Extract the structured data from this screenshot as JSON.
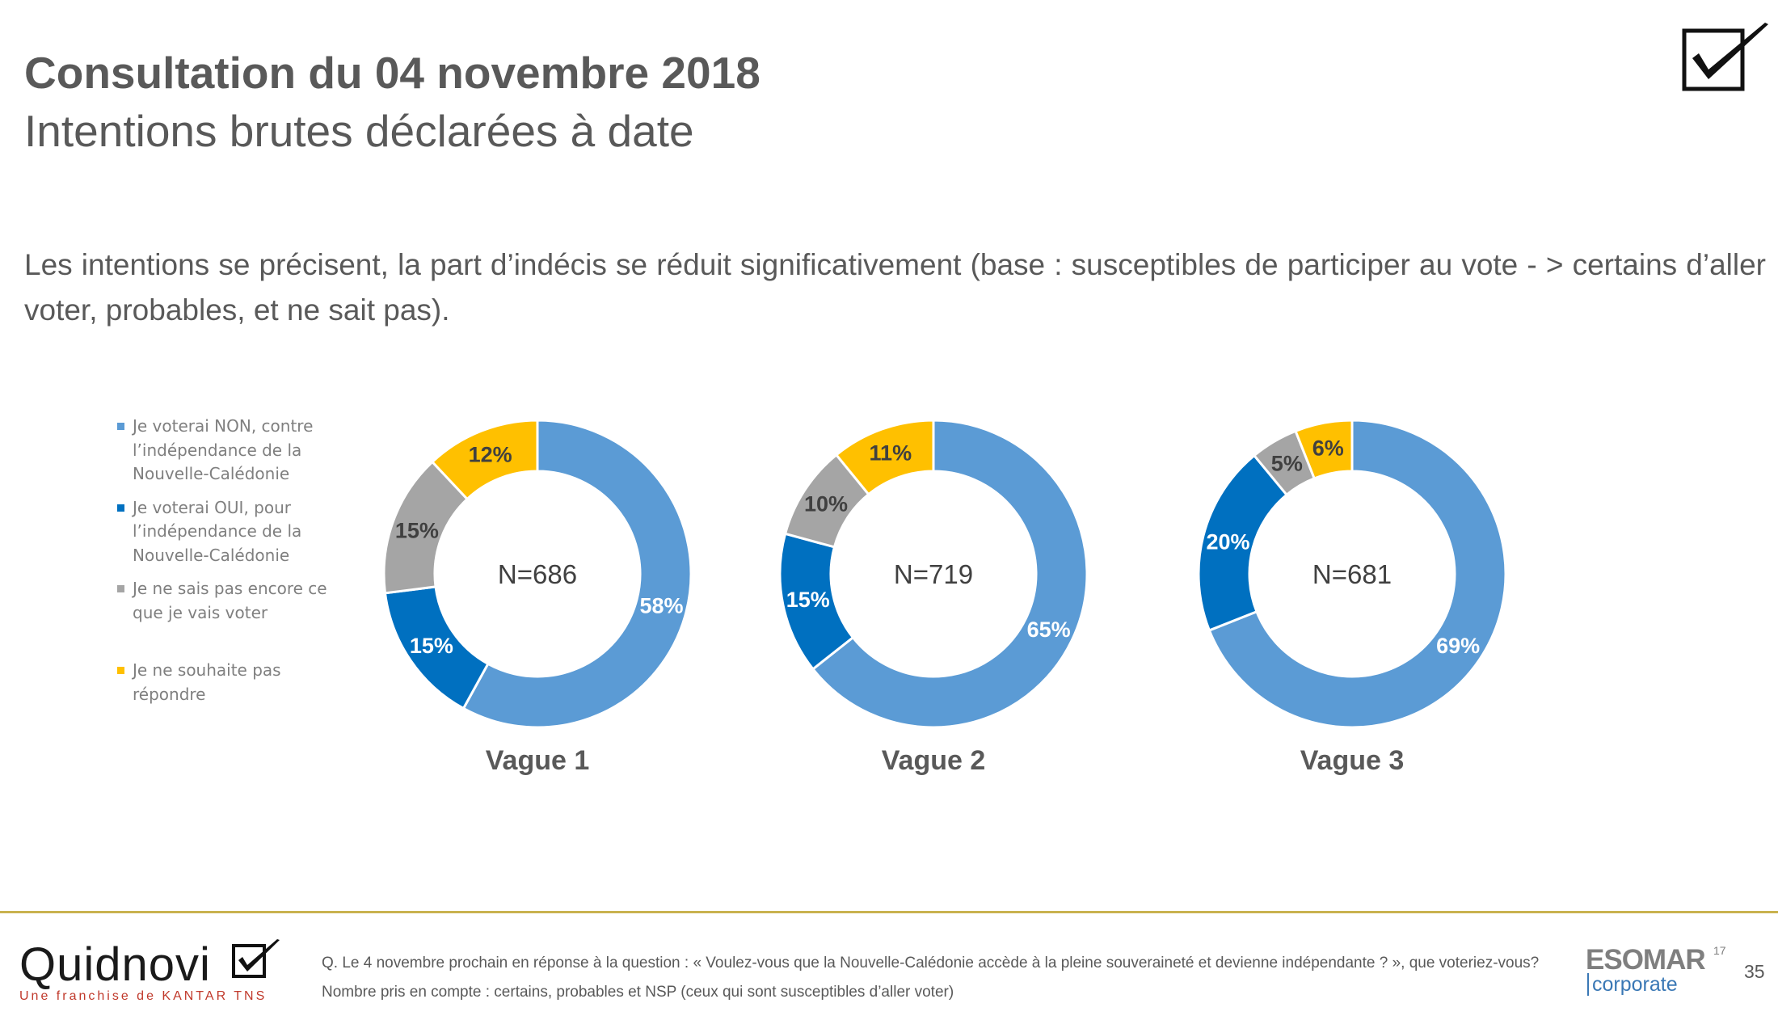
{
  "header": {
    "title": "Consultation du 04 novembre 2018",
    "subtitle": "Intentions brutes déclarées à date",
    "logo_icon": "checkbox-check-icon"
  },
  "intro_text": "Les intentions se précisent, la part d’indécis se réduit significativement (base : susceptibles de participer au vote - > certains d’aller voter, probables, et ne sait pas).",
  "colors": {
    "non": "#5b9bd5",
    "oui": "#0070c0",
    "nsp": "#a5a5a5",
    "no_answer": "#ffc000"
  },
  "chart_data": {
    "type": "donut",
    "legend_placement": "left",
    "series_labels": [
      {
        "key": "non",
        "label": "Je voterai NON, contre l’indépendance de la Nouvelle-Calédonie"
      },
      {
        "key": "oui",
        "label": "Je voterai OUI, pour l’indépendance de la Nouvelle-Calédonie"
      },
      {
        "key": "nsp",
        "label": "Je ne sais pas encore ce que je vais voter"
      },
      {
        "key": "no_answer",
        "label": "Je ne souhaite pas répondre"
      }
    ],
    "charts": [
      {
        "title": "Vague 1",
        "center_label": "N=686",
        "values": {
          "non": 58,
          "oui": 15,
          "nsp": 15,
          "no_answer": 12
        },
        "labels": {
          "non": "58%",
          "oui": "15%",
          "nsp": "15%",
          "no_answer": "12%"
        }
      },
      {
        "title": "Vague 2",
        "center_label": "N=719",
        "values": {
          "non": 65,
          "oui": 15,
          "nsp": 10,
          "no_answer": 11
        },
        "labels": {
          "non": "65%",
          "oui": "15%",
          "nsp": "10%",
          "no_answer": "11%"
        }
      },
      {
        "title": "Vague 3",
        "center_label": "N=681",
        "values": {
          "non": 69,
          "oui": 20,
          "nsp": 5,
          "no_answer": 6
        },
        "labels": {
          "non": "69%",
          "oui": "20%",
          "nsp": "5%",
          "no_answer": "6%"
        }
      }
    ]
  },
  "footer": {
    "brand_name": "Quidnovi",
    "brand_tagline": "Une franchise de KANTAR TNS",
    "question": "Q. Le 4 novembre prochain en réponse à la question : « Voulez-vous que la Nouvelle-Calédonie accède à la pleine souveraineté et devienne indépendante ? », que voteriez-vous?",
    "base_note": "Nombre pris en compte : certains, probables et NSP (ceux qui sont susceptibles d’aller voter)",
    "esomar_name": "ESOMAR",
    "esomar_sup": "17",
    "esomar_sub": "corporate",
    "page_number": "35"
  }
}
